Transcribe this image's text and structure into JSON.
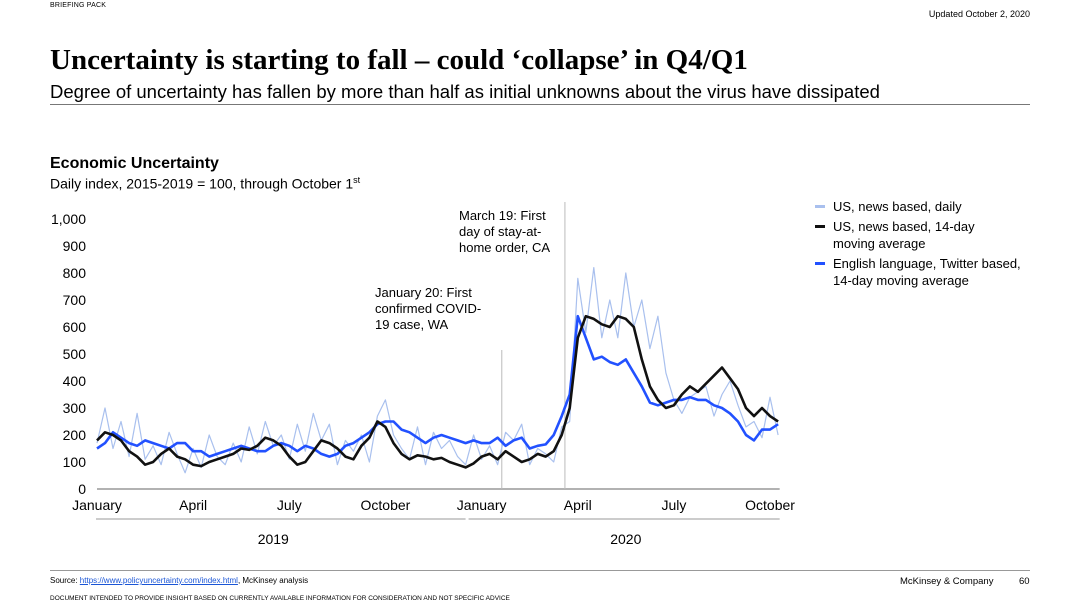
{
  "header": {
    "doc_label": "BRIEFING PACK",
    "updated": "Updated October 2, 2020",
    "title": "Uncertainty is starting to fall – could ‘collapse’ in Q4/Q1",
    "subtitle": "Degree of uncertainty has fallen by more than half as initial unknowns about the virus have dissipated"
  },
  "chart_data": {
    "type": "line",
    "title": "Economic Uncertainty",
    "subtitle": "Daily index, 2015-2019 = 100, through October 1",
    "subtitle_sup": "st",
    "ylim": [
      0,
      1000
    ],
    "y_ticks": [
      "1,000",
      "900",
      "800",
      "700",
      "600",
      "500",
      "400",
      "300",
      "200",
      "100",
      "0"
    ],
    "x_ticks": [
      "January",
      "April",
      "July",
      "October",
      "January",
      "April",
      "July",
      "October"
    ],
    "year_labels": [
      "2019",
      "2020"
    ],
    "x_unit": "months since January 2019",
    "grid": false,
    "legend_position": "right",
    "annotations": [
      {
        "text": [
          "January 20: First",
          "confirmed COVID-",
          "19 case, WA"
        ],
        "x": 12.63
      },
      {
        "text": [
          "March 19: First",
          "day of stay-at-",
          "home order, CA"
        ],
        "x": 14.6
      }
    ],
    "series": [
      {
        "name": "US, news based, daily",
        "color": "#a9c0ee",
        "x": [
          0,
          0.25,
          0.5,
          0.75,
          1,
          1.25,
          1.5,
          1.75,
          2,
          2.25,
          2.5,
          2.75,
          3,
          3.25,
          3.5,
          3.75,
          4,
          4.25,
          4.5,
          4.75,
          5,
          5.25,
          5.5,
          5.75,
          6,
          6.25,
          6.5,
          6.75,
          7,
          7.25,
          7.5,
          7.75,
          8,
          8.25,
          8.5,
          8.75,
          9,
          9.25,
          9.5,
          9.75,
          10,
          10.25,
          10.5,
          10.75,
          11,
          11.25,
          11.5,
          11.75,
          12,
          12.25,
          12.5,
          12.75,
          13,
          13.25,
          13.5,
          13.75,
          14,
          14.25,
          14.5,
          14.75,
          15,
          15.25,
          15.5,
          15.75,
          16,
          16.25,
          16.5,
          16.75,
          17,
          17.25,
          17.5,
          17.75,
          18,
          18.25,
          18.5,
          18.75,
          19,
          19.25,
          19.5,
          19.75,
          20,
          20.25,
          20.5,
          20.75,
          21,
          21.25
        ],
        "values": [
          170,
          300,
          150,
          250,
          120,
          280,
          110,
          160,
          90,
          210,
          130,
          60,
          150,
          80,
          200,
          120,
          90,
          170,
          100,
          230,
          130,
          250,
          160,
          200,
          110,
          240,
          140,
          280,
          180,
          240,
          90,
          180,
          140,
          200,
          100,
          270,
          330,
          200,
          150,
          110,
          230,
          90,
          210,
          150,
          180,
          120,
          90,
          200,
          110,
          160,
          90,
          210,
          180,
          240,
          90,
          150,
          130,
          100,
          230,
          250,
          780,
          580,
          820,
          560,
          700,
          560,
          800,
          600,
          700,
          520,
          640,
          430,
          330,
          280,
          340,
          360,
          380,
          270,
          350,
          400,
          310,
          230,
          250,
          190,
          340,
          200
        ]
      },
      {
        "name": "US, news based, 14-day moving average",
        "color": "#111111",
        "x": [
          0,
          0.25,
          0.5,
          0.75,
          1,
          1.25,
          1.5,
          1.75,
          2,
          2.25,
          2.5,
          2.75,
          3,
          3.25,
          3.5,
          3.75,
          4,
          4.25,
          4.5,
          4.75,
          5,
          5.25,
          5.5,
          5.75,
          6,
          6.25,
          6.5,
          6.75,
          7,
          7.25,
          7.5,
          7.75,
          8,
          8.25,
          8.5,
          8.75,
          9,
          9.25,
          9.5,
          9.75,
          10,
          10.25,
          10.5,
          10.75,
          11,
          11.25,
          11.5,
          11.75,
          12,
          12.25,
          12.5,
          12.75,
          13,
          13.25,
          13.5,
          13.75,
          14,
          14.25,
          14.5,
          14.75,
          15,
          15.25,
          15.5,
          15.75,
          16,
          16.25,
          16.5,
          16.75,
          17,
          17.25,
          17.5,
          17.75,
          18,
          18.25,
          18.5,
          18.75,
          19,
          19.25,
          19.5,
          19.75,
          20,
          20.25,
          20.5,
          20.75,
          21,
          21.25
        ],
        "values": [
          180,
          210,
          200,
          180,
          140,
          120,
          90,
          100,
          130,
          150,
          120,
          110,
          90,
          85,
          100,
          110,
          120,
          130,
          150,
          145,
          160,
          190,
          180,
          160,
          120,
          90,
          100,
          140,
          180,
          170,
          150,
          120,
          110,
          160,
          190,
          250,
          230,
          170,
          130,
          110,
          125,
          120,
          110,
          115,
          100,
          90,
          80,
          95,
          120,
          130,
          110,
          140,
          120,
          100,
          110,
          130,
          120,
          140,
          200,
          300,
          560,
          640,
          630,
          610,
          600,
          640,
          630,
          600,
          480,
          380,
          330,
          300,
          310,
          350,
          380,
          360,
          390,
          420,
          450,
          410,
          370,
          300,
          270,
          300,
          270,
          250
        ]
      },
      {
        "name": "English language, Twitter based, 14-day moving average",
        "color": "#2251ff",
        "x": [
          0,
          0.25,
          0.5,
          0.75,
          1,
          1.25,
          1.5,
          1.75,
          2,
          2.25,
          2.5,
          2.75,
          3,
          3.25,
          3.5,
          3.75,
          4,
          4.25,
          4.5,
          4.75,
          5,
          5.25,
          5.5,
          5.75,
          6,
          6.25,
          6.5,
          6.75,
          7,
          7.25,
          7.5,
          7.75,
          8,
          8.25,
          8.5,
          8.75,
          9,
          9.25,
          9.5,
          9.75,
          10,
          10.25,
          10.5,
          10.75,
          11,
          11.25,
          11.5,
          11.75,
          12,
          12.25,
          12.5,
          12.75,
          13,
          13.25,
          13.5,
          13.75,
          14,
          14.25,
          14.5,
          14.75,
          15,
          15.25,
          15.5,
          15.75,
          16,
          16.25,
          16.5,
          16.75,
          17,
          17.25,
          17.5,
          17.75,
          18,
          18.25,
          18.5,
          18.75,
          19,
          19.25,
          19.5,
          19.75,
          20,
          20.25,
          20.5,
          20.75,
          21,
          21.25
        ],
        "values": [
          150,
          170,
          210,
          190,
          170,
          160,
          180,
          170,
          160,
          150,
          170,
          170,
          140,
          140,
          120,
          130,
          140,
          150,
          160,
          150,
          140,
          140,
          160,
          170,
          160,
          140,
          160,
          150,
          130,
          120,
          130,
          160,
          170,
          190,
          210,
          240,
          250,
          250,
          220,
          210,
          190,
          170,
          190,
          200,
          190,
          180,
          170,
          180,
          170,
          170,
          190,
          160,
          180,
          190,
          150,
          160,
          165,
          200,
          270,
          350,
          640,
          560,
          480,
          490,
          470,
          460,
          480,
          430,
          380,
          320,
          310,
          320,
          330,
          330,
          340,
          330,
          330,
          310,
          300,
          280,
          250,
          200,
          180,
          220,
          220,
          240
        ]
      }
    ]
  },
  "footer": {
    "source_prefix": "Source: ",
    "source_link": "https://www.policyuncertainty.com/index.html",
    "source_suffix": ", McKinsey analysis",
    "disclaimer": "DOCUMENT INTENDED TO PROVIDE INSIGHT BASED ON CURRENTLY AVAILABLE INFORMATION FOR CONSIDERATION AND NOT SPECIFIC ADVICE",
    "company": "McKinsey & Company",
    "page_number": "60"
  }
}
